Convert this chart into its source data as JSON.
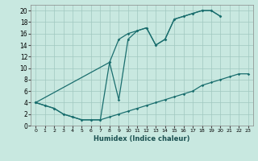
{
  "xlabel": "Humidex (Indice chaleur)",
  "bg_color": "#c8e8e0",
  "grid_color": "#a0c8c0",
  "line_color": "#1a6e6e",
  "xlim": [
    -0.5,
    23.5
  ],
  "ylim": [
    0,
    21
  ],
  "xtick_labels": [
    "0",
    "1",
    "2",
    "3",
    "4",
    "5",
    "6",
    "7",
    "8",
    "9",
    "10",
    "11",
    "12",
    "13",
    "14",
    "15",
    "16",
    "17",
    "18",
    "19",
    "20",
    "21",
    "22",
    "23"
  ],
  "ytick_labels": [
    "0",
    "2",
    "4",
    "6",
    "8",
    "10",
    "12",
    "14",
    "16",
    "18",
    "20"
  ],
  "curve_bottom_x": [
    0,
    1,
    2,
    3,
    4,
    5,
    6,
    7,
    8,
    9,
    10,
    11,
    12,
    13,
    14,
    15,
    16,
    17,
    18,
    19,
    20,
    21,
    22,
    23
  ],
  "curve_bottom_y": [
    4,
    3.5,
    3,
    2,
    1.5,
    1,
    1,
    1,
    1.5,
    2,
    2.5,
    3,
    3.5,
    4,
    4.5,
    5,
    5.5,
    6,
    7,
    7.5,
    8,
    8.5,
    9,
    9
  ],
  "curve_upper_x": [
    0,
    8,
    9,
    10,
    11,
    12,
    13,
    14,
    15,
    16,
    17,
    18,
    19,
    20
  ],
  "curve_upper_y": [
    4,
    11,
    15,
    16,
    16.5,
    17,
    14,
    15,
    18.5,
    19,
    19.5,
    20,
    20,
    19
  ],
  "curve_zigzag_x": [
    0,
    1,
    2,
    3,
    4,
    5,
    6,
    7,
    8,
    9,
    10,
    11,
    12,
    13,
    14,
    15,
    16,
    17,
    18,
    19,
    20
  ],
  "curve_zigzag_y": [
    4,
    3.5,
    3,
    2,
    1.5,
    1,
    1,
    1,
    11,
    4.5,
    15,
    16.5,
    17,
    14,
    15,
    18.5,
    19,
    19.5,
    20,
    20,
    19
  ]
}
